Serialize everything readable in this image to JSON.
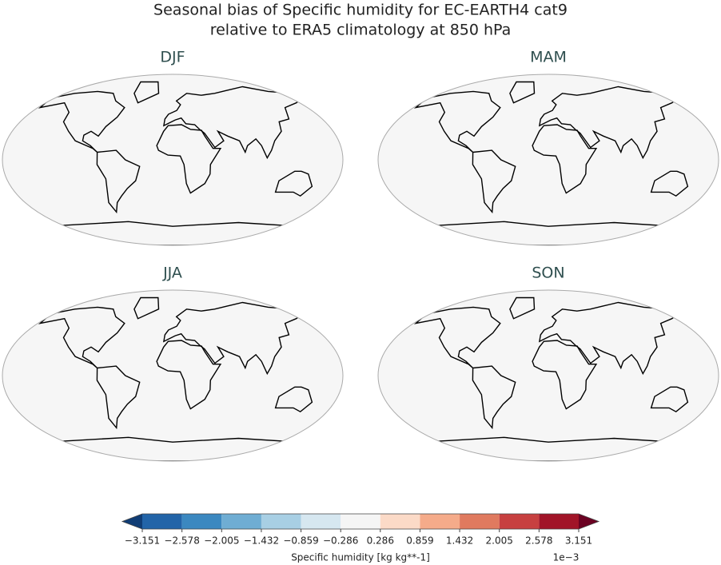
{
  "title": [
    "Seasonal bias of Specific humidity for EC-EARTH4 cat9",
    "relative to ERA5 climatology at 850 hPa"
  ],
  "panels": [
    {
      "title": "DJF"
    },
    {
      "title": "MAM"
    },
    {
      "title": "JJA"
    },
    {
      "title": "SON"
    }
  ],
  "colorbar": {
    "colors": [
      "#2264a8",
      "#3b88c0",
      "#6fadd3",
      "#a8cfe4",
      "#d6e7f0",
      "#f5f5f5",
      "#fbdac7",
      "#f5ab8a",
      "#e07a5f",
      "#c74040",
      "#a11428"
    ],
    "extend_colors": [
      "#103d75",
      "#6b0222"
    ],
    "ticks": [
      {
        "value": -3.151,
        "label": "−3.151"
      },
      {
        "value": -2.578,
        "label": "−2.578"
      },
      {
        "value": -2.005,
        "label": "−2.005"
      },
      {
        "value": -1.432,
        "label": "−1.432"
      },
      {
        "value": -0.859,
        "label": "−0.859"
      },
      {
        "value": -0.286,
        "label": "−0.286"
      },
      0.286,
      0.859,
      1.432,
      2.005,
      2.578,
      3.151
    ],
    "label": "Specific humidity [kg kg**-1]",
    "offset_label": "1e−3"
  }
}
